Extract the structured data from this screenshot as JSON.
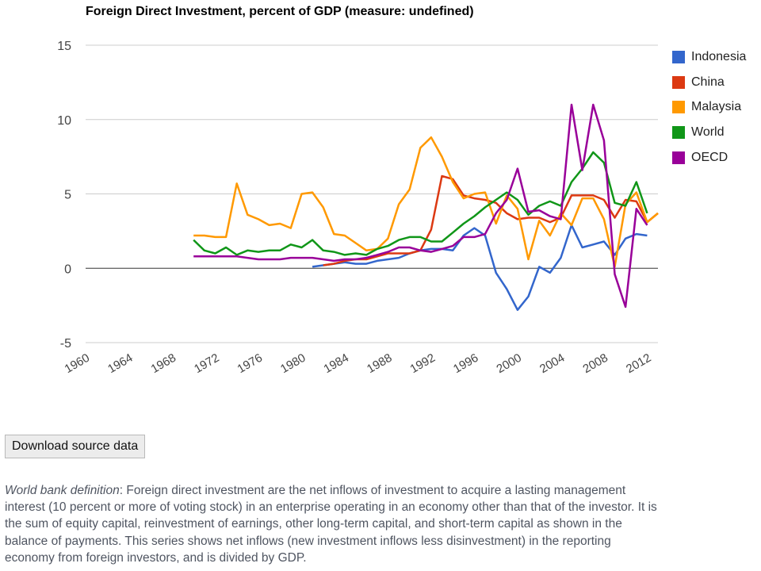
{
  "chart_data": {
    "type": "line",
    "title": "Foreign Direct Investment, percent of GDP (measure: undefined)",
    "xlabel": "",
    "ylabel": "",
    "xlim": [
      1960,
      2013
    ],
    "ylim": [
      -5,
      15
    ],
    "x_ticks": [
      "1960",
      "1964",
      "1968",
      "1972",
      "1976",
      "1980",
      "1984",
      "1988",
      "1992",
      "1996",
      "2000",
      "2004",
      "2008",
      "2012"
    ],
    "y_ticks": [
      "15",
      "10",
      "5",
      "0",
      "-5"
    ],
    "legend_position": "right",
    "grid": true,
    "series": [
      {
        "name": "Indonesia",
        "color": "#3366cc",
        "x": [
          1981,
          1982,
          1983,
          1984,
          1985,
          1986,
          1987,
          1988,
          1989,
          1990,
          1991,
          1992,
          1993,
          1994,
          1995,
          1996,
          1997,
          1998,
          1999,
          2000,
          2001,
          2002,
          2003,
          2004,
          2005,
          2006,
          2007,
          2008,
          2009,
          2010,
          2011,
          2012
        ],
        "values": [
          0.1,
          0.2,
          0.3,
          0.4,
          0.3,
          0.3,
          0.5,
          0.6,
          0.7,
          1.0,
          1.2,
          1.3,
          1.3,
          1.2,
          2.2,
          2.7,
          2.2,
          -0.3,
          -1.4,
          -2.8,
          -1.9,
          0.1,
          -0.3,
          0.7,
          2.9,
          1.4,
          1.6,
          1.8,
          0.9,
          2.0,
          2.3,
          2.2
        ]
      },
      {
        "name": "China",
        "color": "#dc3912",
        "x": [
          1982,
          1983,
          1984,
          1985,
          1986,
          1987,
          1988,
          1989,
          1990,
          1991,
          1992,
          1993,
          1994,
          1995,
          1996,
          1997,
          1998,
          1999,
          2000,
          2001,
          2002,
          2003,
          2004,
          2005,
          2006,
          2007,
          2008,
          2009,
          2010,
          2011,
          2012,
          2013
        ],
        "values": [
          0.2,
          0.3,
          0.5,
          0.6,
          0.6,
          0.8,
          1.0,
          1.0,
          1.0,
          1.2,
          2.6,
          6.2,
          6.0,
          4.9,
          4.7,
          4.6,
          4.4,
          3.7,
          3.3,
          3.4,
          3.4,
          3.1,
          3.4,
          4.9,
          4.9,
          4.9,
          4.6,
          3.4,
          4.6,
          4.5,
          3.1,
          3.7
        ]
      },
      {
        "name": "Malaysia",
        "color": "#ff9900",
        "x": [
          1970,
          1971,
          1972,
          1973,
          1974,
          1975,
          1976,
          1977,
          1978,
          1979,
          1980,
          1981,
          1982,
          1983,
          1984,
          1985,
          1986,
          1987,
          1988,
          1989,
          1990,
          1991,
          1992,
          1993,
          1994,
          1995,
          1996,
          1997,
          1998,
          1999,
          2000,
          2001,
          2002,
          2003,
          2004,
          2005,
          2006,
          2007,
          2008,
          2009,
          2010,
          2011,
          2012,
          2013
        ],
        "values": [
          2.2,
          2.2,
          2.1,
          2.1,
          5.7,
          3.6,
          3.3,
          2.9,
          3.0,
          2.7,
          5.0,
          5.1,
          4.1,
          2.3,
          2.2,
          1.7,
          1.2,
          1.3,
          2.0,
          4.3,
          5.3,
          8.1,
          8.8,
          7.5,
          5.8,
          4.7,
          5.0,
          5.1,
          3.0,
          4.9,
          4.0,
          0.6,
          3.2,
          2.2,
          3.7,
          2.9,
          4.7,
          4.7,
          3.3,
          0.1,
          4.3,
          5.1,
          3.1,
          3.7
        ]
      },
      {
        "name": "World",
        "color": "#109618",
        "x": [
          1970,
          1971,
          1972,
          1973,
          1974,
          1975,
          1976,
          1977,
          1978,
          1979,
          1980,
          1981,
          1982,
          1983,
          1984,
          1985,
          1986,
          1987,
          1988,
          1989,
          1990,
          1991,
          1992,
          1993,
          1994,
          1995,
          1996,
          1997,
          1998,
          1999,
          2000,
          2001,
          2002,
          2003,
          2004,
          2005,
          2006,
          2007,
          2008,
          2009,
          2010,
          2011,
          2012
        ],
        "values": [
          1.9,
          1.2,
          1.0,
          1.4,
          0.9,
          1.2,
          1.1,
          1.2,
          1.2,
          1.6,
          1.4,
          1.9,
          1.2,
          1.1,
          0.9,
          1.0,
          0.9,
          1.3,
          1.5,
          1.9,
          2.1,
          2.1,
          1.8,
          1.8,
          2.4,
          3.0,
          3.5,
          4.1,
          4.6,
          5.1,
          4.6,
          3.6,
          4.2,
          4.5,
          4.2,
          5.8,
          6.7,
          7.8,
          7.1,
          4.4,
          4.2,
          5.8,
          3.7
        ]
      },
      {
        "name": "OECD",
        "color": "#990099",
        "x": [
          1970,
          1971,
          1972,
          1973,
          1974,
          1975,
          1976,
          1977,
          1978,
          1979,
          1980,
          1981,
          1982,
          1983,
          1984,
          1985,
          1986,
          1987,
          1988,
          1989,
          1990,
          1991,
          1992,
          1993,
          1994,
          1995,
          1996,
          1997,
          1998,
          1999,
          2000,
          2001,
          2002,
          2003,
          2004,
          2005,
          2006,
          2007,
          2008,
          2009,
          2010,
          2011,
          2012
        ],
        "values": [
          0.8,
          0.8,
          0.8,
          0.8,
          0.8,
          0.7,
          0.6,
          0.6,
          0.6,
          0.7,
          0.7,
          0.7,
          0.6,
          0.5,
          0.6,
          0.6,
          0.7,
          0.9,
          1.1,
          1.4,
          1.4,
          1.2,
          1.1,
          1.3,
          1.5,
          2.1,
          2.1,
          2.3,
          3.7,
          4.6,
          6.7,
          3.8,
          3.9,
          3.5,
          3.3,
          11.0,
          6.6,
          11.0,
          8.6,
          -0.4,
          -2.6,
          4.0,
          2.9
        ]
      }
    ]
  },
  "controls": {
    "download_label": "Download source data"
  },
  "definition": {
    "term": "World bank definition",
    "text": ": Foreign direct investment are the net inflows of investment to acquire a lasting management interest (10 percent or more of voting stock) in an enterprise operating in an economy other than that of the investor. It is the sum of equity capital, reinvestment of earnings, other long-term capital, and short-term capital as shown in the balance of payments. This series shows net inflows (new investment inflows less disinvestment) in the reporting economy from foreign investors, and is divided by GDP."
  }
}
